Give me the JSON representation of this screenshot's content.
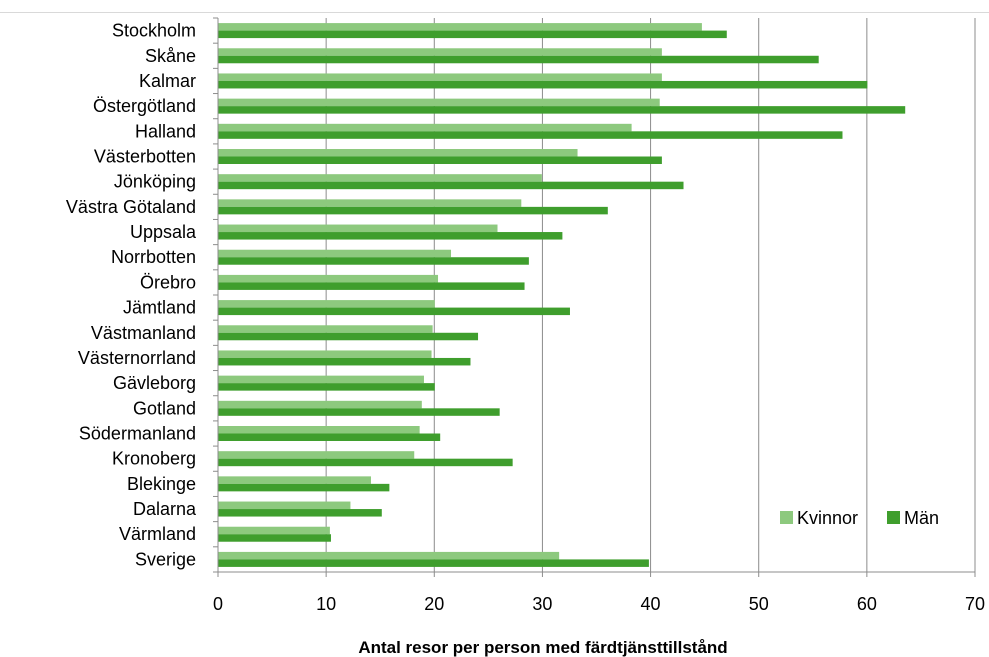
{
  "chart_data": {
    "type": "bar",
    "orientation": "horizontal",
    "categories": [
      "Stockholm",
      "Skåne",
      "Kalmar",
      "Östergötland",
      "Halland",
      "Västerbotten",
      "Jönköping",
      "Västra Götaland",
      "Uppsala",
      "Norrbotten",
      "Örebro",
      "Jämtland",
      "Västmanland",
      "Västernorrland",
      "Gävleborg",
      "Gotland",
      "Södermanland",
      "Kronoberg",
      "Blekinge",
      "Dalarna",
      "Värmland",
      "Sverige"
    ],
    "series": [
      {
        "name": "Kvinnor",
        "color": "#8dc97e",
        "values": [
          44.7,
          41.0,
          41.0,
          40.8,
          38.2,
          33.2,
          29.9,
          28.0,
          25.8,
          21.5,
          20.3,
          20.0,
          19.8,
          19.7,
          19.0,
          18.8,
          18.6,
          18.1,
          14.1,
          12.2,
          10.3,
          31.5
        ]
      },
      {
        "name": "Män",
        "color": "#3f9e2d",
        "values": [
          47.0,
          55.5,
          60.0,
          63.5,
          57.7,
          41.0,
          43.0,
          36.0,
          31.8,
          28.7,
          28.3,
          32.5,
          24.0,
          23.3,
          20.0,
          26.0,
          20.5,
          27.2,
          15.8,
          15.1,
          10.4,
          39.8
        ]
      }
    ],
    "x_ticks": [
      "0",
      "10",
      "20",
      "30",
      "40",
      "50",
      "60",
      "70"
    ],
    "xlim": [
      0,
      70
    ],
    "xlabel": "Antal resor per person med färdtjänsttillstånd",
    "grid": true,
    "legend_position": "bottom-right"
  }
}
